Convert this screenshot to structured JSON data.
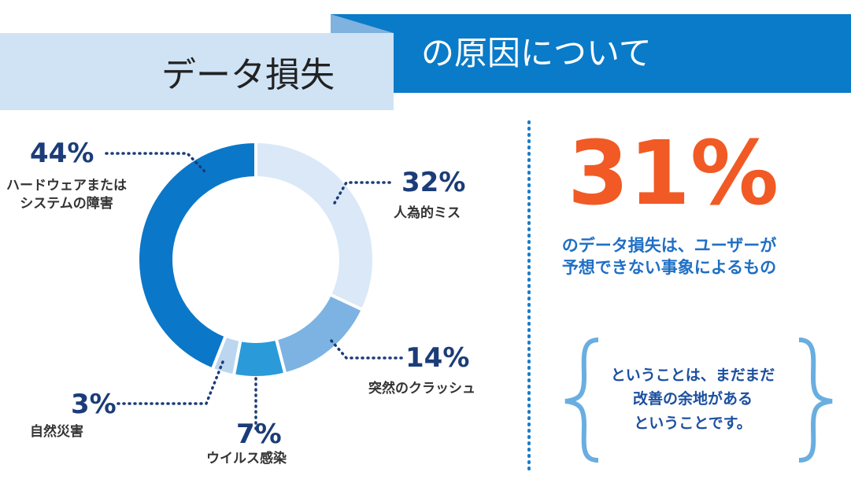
{
  "header": {
    "title_left": "データ損失",
    "title_right": "の原因について"
  },
  "chart_data": {
    "type": "donut",
    "categories": [
      "人為的ミス",
      "突然のクラッシュ",
      "ウイルス感染",
      "自然災害",
      "ハードウェアまたは\nシステムの障害"
    ],
    "values": [
      32,
      14,
      7,
      3,
      44
    ],
    "value_labels": [
      "32%",
      "14%",
      "7%",
      "3%",
      "44%"
    ],
    "colors": [
      "#dae8f7",
      "#7db3e2",
      "#2b9ad8",
      "#bcd6ef",
      "#0b77c8"
    ]
  },
  "callout": {
    "stat": "31%",
    "text": "のデータ損失は、ユーザーが\n予想できない事象によるもの",
    "note": "ということは、まだまだ\n改善の余地がある\nということです。"
  }
}
